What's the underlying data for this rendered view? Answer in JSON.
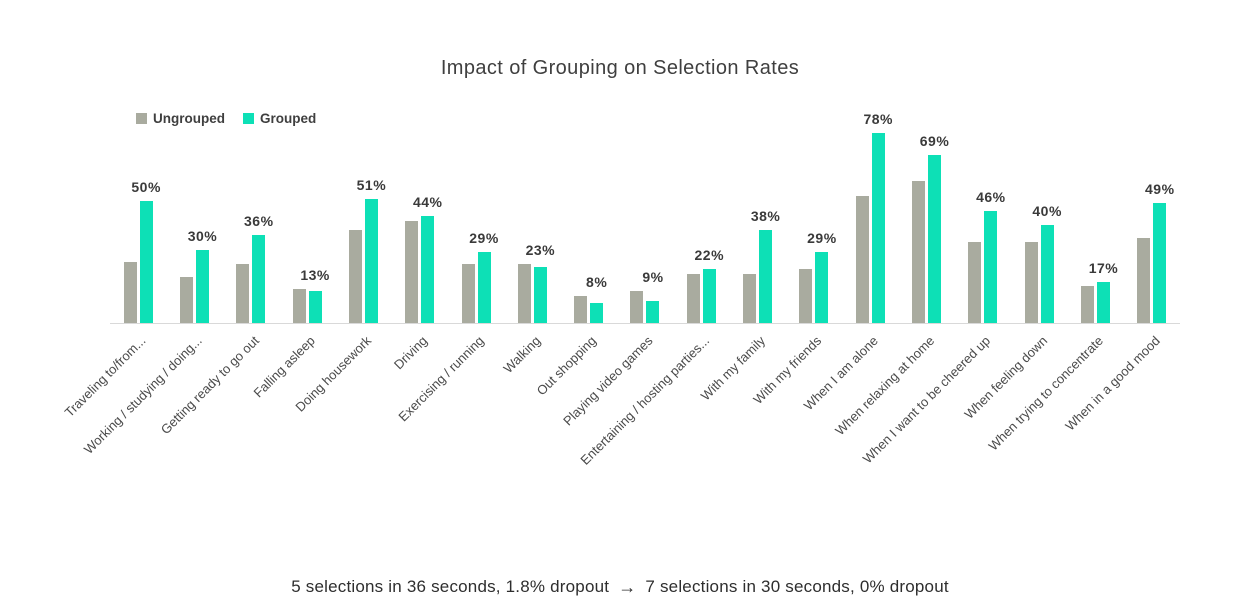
{
  "title": "Impact of Grouping on Selection Rates",
  "legend": {
    "items": [
      {
        "label": "Ungrouped",
        "color": "#a9ab9f"
      },
      {
        "label": "Grouped",
        "color": "#0de0b6"
      }
    ]
  },
  "colors": {
    "ungrouped": "#a9ab9f",
    "grouped": "#0de0b6",
    "axis_line": "#d9d9d9",
    "text": "#3f3f3f"
  },
  "caption": {
    "part1": "5 selections in 36 seconds, 1.8% dropout",
    "arrow": "→",
    "part2": "7 selections in 30 seconds, 0% dropout"
  },
  "chart_data": {
    "type": "bar",
    "title": "Impact of Grouping on Selection Rates",
    "categories": [
      "Traveling to/from...",
      "Working / studying / doing...",
      "Getting ready to go out",
      "Falling asleep",
      "Doing housework",
      "Driving",
      "Exercising / running",
      "Walking",
      "Out shopping",
      "Playing video games",
      "Entertaining / hosting parties...",
      "With my family",
      "With my friends",
      "When I am alone",
      "When relaxing at home",
      "When I want to be cheered up",
      "When feeling down",
      "When trying to concentrate",
      "When in a good mood"
    ],
    "series": [
      {
        "name": "Ungrouped",
        "values": [
          25,
          19,
          24,
          14,
          38,
          42,
          24,
          24,
          11,
          13,
          20,
          20,
          22,
          52,
          58,
          33,
          33,
          15,
          35
        ]
      },
      {
        "name": "Grouped",
        "values": [
          50,
          30,
          36,
          13,
          51,
          44,
          29,
          23,
          8,
          9,
          22,
          38,
          29,
          78,
          69,
          46,
          40,
          17,
          49
        ]
      }
    ],
    "data_labels": [
      "50%",
      "30%",
      "36%",
      "13%",
      "51%",
      "44%",
      "29%",
      "23%",
      "8%",
      "9%",
      "22%",
      "38%",
      "29%",
      "78%",
      "69%",
      "46%",
      "40%",
      "17%",
      "49%"
    ],
    "xlabel": "",
    "ylabel": "",
    "ylim": [
      0,
      100
    ],
    "grid": false,
    "legend_position": "top-left",
    "annotation": "5 selections in 36 seconds, 1.8% dropout → 7 selections in 30 seconds, 0% dropout"
  }
}
